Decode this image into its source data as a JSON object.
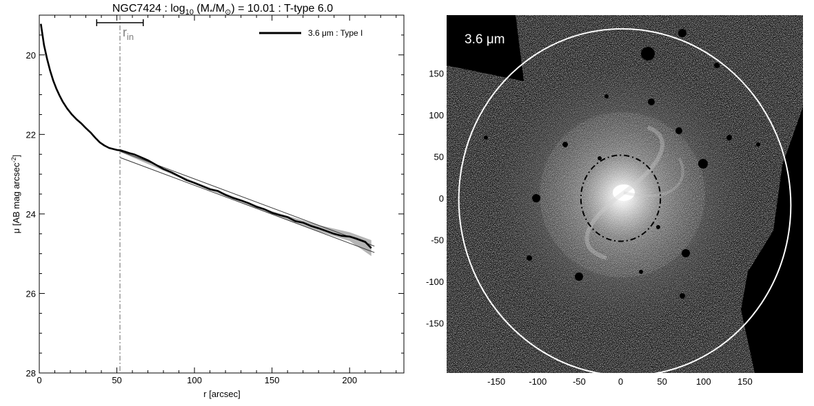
{
  "colors": {
    "profile": "#000000",
    "fit": "#333333",
    "error_band": "#b5b5b5",
    "r_in_marker": "#808080",
    "image_background": "#000000",
    "outer_ellipse": "#ffffff",
    "inner_ellipse": "#000000"
  },
  "chart_data": [
    {
      "type": "line",
      "title": {
        "pre": "NGC7424 : log",
        "sub1": "10",
        "mid": " (M",
        "sub2": "*",
        "mid2": "/M",
        "sub3": "⊙",
        "post": ") = 10.01 : T-type 6.0"
      },
      "xlabel": "r [arcsec]",
      "ylabel": {
        "pre": "μ [AB mag arcsec",
        "sup": "-2",
        "post": "]"
      },
      "xlim": [
        0,
        235
      ],
      "ylim": [
        28,
        19
      ],
      "y_inverted": true,
      "xticks": [
        0,
        50,
        100,
        150,
        200
      ],
      "yticks": [
        20,
        22,
        24,
        26,
        28
      ],
      "grid": false,
      "legend": {
        "placement": "top-right",
        "label": "3.6 μm : Type I"
      },
      "r_in": {
        "value": 52,
        "range": [
          37,
          67
        ],
        "label_main": "r",
        "label_sub": "in"
      },
      "series": [
        {
          "name": "3.6 μm : Type I",
          "kind": "profile",
          "x": [
            1,
            3,
            5,
            7,
            9,
            11,
            13,
            15,
            18,
            21,
            24,
            27,
            30,
            33,
            36,
            39,
            42,
            45,
            48,
            50,
            52,
            55,
            58,
            61,
            64,
            67,
            70,
            75,
            80,
            85,
            90,
            95,
            100,
            105,
            110,
            115,
            120,
            125,
            130,
            135,
            140,
            145,
            150,
            155,
            160,
            165,
            170,
            175,
            180,
            185,
            190,
            195,
            200,
            205,
            210,
            214
          ],
          "y": [
            19.22,
            19.75,
            20.1,
            20.4,
            20.65,
            20.85,
            21.02,
            21.17,
            21.35,
            21.5,
            21.62,
            21.72,
            21.84,
            21.95,
            22.08,
            22.2,
            22.28,
            22.34,
            22.37,
            22.39,
            22.4,
            22.43,
            22.47,
            22.5,
            22.55,
            22.6,
            22.65,
            22.76,
            22.87,
            22.95,
            23.05,
            23.15,
            23.22,
            23.3,
            23.38,
            23.42,
            23.52,
            23.6,
            23.66,
            23.73,
            23.82,
            23.88,
            23.97,
            24.03,
            24.08,
            24.18,
            24.22,
            24.3,
            24.36,
            24.43,
            24.5,
            24.55,
            24.57,
            24.63,
            24.7,
            24.86
          ]
        },
        {
          "kind": "error_band",
          "x": [
            52,
            100,
            150,
            180,
            200,
            214
          ],
          "lower": [
            22.36,
            23.19,
            23.93,
            24.28,
            24.46,
            24.66
          ],
          "upper": [
            22.44,
            23.25,
            24.01,
            24.44,
            24.68,
            25.06
          ]
        },
        {
          "kind": "fit",
          "x": [
            52,
            216
          ],
          "y": [
            22.42,
            24.81
          ]
        },
        {
          "kind": "fit",
          "x": [
            52,
            216
          ],
          "y": [
            22.58,
            24.97
          ]
        }
      ]
    },
    {
      "type": "image",
      "label": "3.6 μm",
      "xticks": [
        -150,
        -100,
        -50,
        0,
        50,
        100,
        150
      ],
      "yticks": [
        150,
        100,
        50,
        0,
        -50,
        -100,
        -150
      ],
      "xlim": [
        -210,
        220
      ],
      "ylim": [
        -210,
        220
      ],
      "outer_ellipse": {
        "center": [
          5,
          -5
        ],
        "rx": 200,
        "ry": 210,
        "rotation_deg": -10
      },
      "inner_ellipse": {
        "center": [
          0,
          0
        ],
        "rx": 48,
        "ry": 52,
        "rotation_deg": 0
      }
    }
  ]
}
